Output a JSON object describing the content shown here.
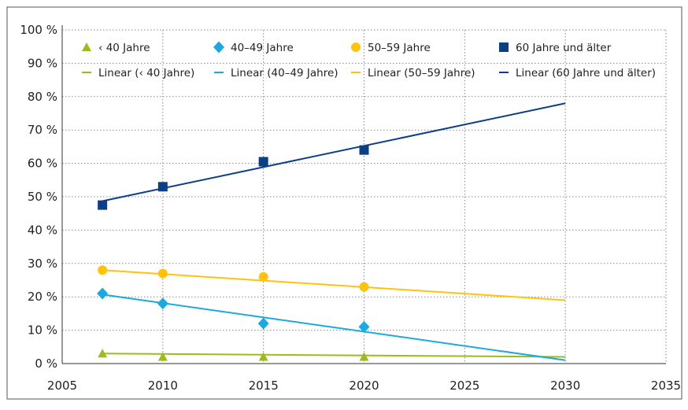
{
  "chart_data": {
    "type": "scatter",
    "xlim": [
      2005,
      2035
    ],
    "ylim": [
      0,
      100
    ],
    "x_ticks": [
      "2005",
      "2010",
      "2015",
      "2020",
      "2025",
      "2030",
      "2035"
    ],
    "y_ticks": [
      "0 %",
      "10 %",
      "20 %",
      "30 %",
      "40 %",
      "50 %",
      "60 %",
      "70 %",
      "80 %",
      "90 %",
      "100 %"
    ],
    "grid": true,
    "legend_position": "top",
    "series": [
      {
        "name": "‹ 40 Jahre",
        "marker": "triangle",
        "color": "#9bbb1e",
        "x": [
          2007,
          2010,
          2015,
          2020
        ],
        "y": [
          3,
          2,
          2,
          2
        ]
      },
      {
        "name": "40–49 Jahre",
        "marker": "diamond",
        "color": "#1ea8e0",
        "x": [
          2007,
          2010,
          2015,
          2020
        ],
        "y": [
          21,
          18,
          12,
          11
        ]
      },
      {
        "name": "50–59 Jahre",
        "marker": "circle",
        "color": "#ffc20e",
        "x": [
          2007,
          2010,
          2015,
          2020
        ],
        "y": [
          28,
          27,
          26,
          23
        ]
      },
      {
        "name": "60 Jahre und älter",
        "marker": "square",
        "color": "#0c3f85",
        "x": [
          2007,
          2010,
          2015,
          2020
        ],
        "y": [
          47.5,
          53,
          60.5,
          64
        ]
      }
    ],
    "trendlines": [
      {
        "name": "Linear (‹ 40 Jahre)",
        "color": "#9bbb1e",
        "x": [
          2007,
          2030
        ],
        "y": [
          3,
          2
        ]
      },
      {
        "name": "Linear (40–49 Jahre)",
        "color": "#1ea8e0",
        "x": [
          2007,
          2030
        ],
        "y": [
          20.7,
          1
        ]
      },
      {
        "name": "Linear (50–59 Jahre)",
        "color": "#ffc20e",
        "x": [
          2007,
          2030
        ],
        "y": [
          28,
          19
        ]
      },
      {
        "name": "Linear (60 Jahre und älter)",
        "color": "#0c3f85",
        "x": [
          2007,
          2030
        ],
        "y": [
          48.7,
          78
        ]
      }
    ]
  }
}
